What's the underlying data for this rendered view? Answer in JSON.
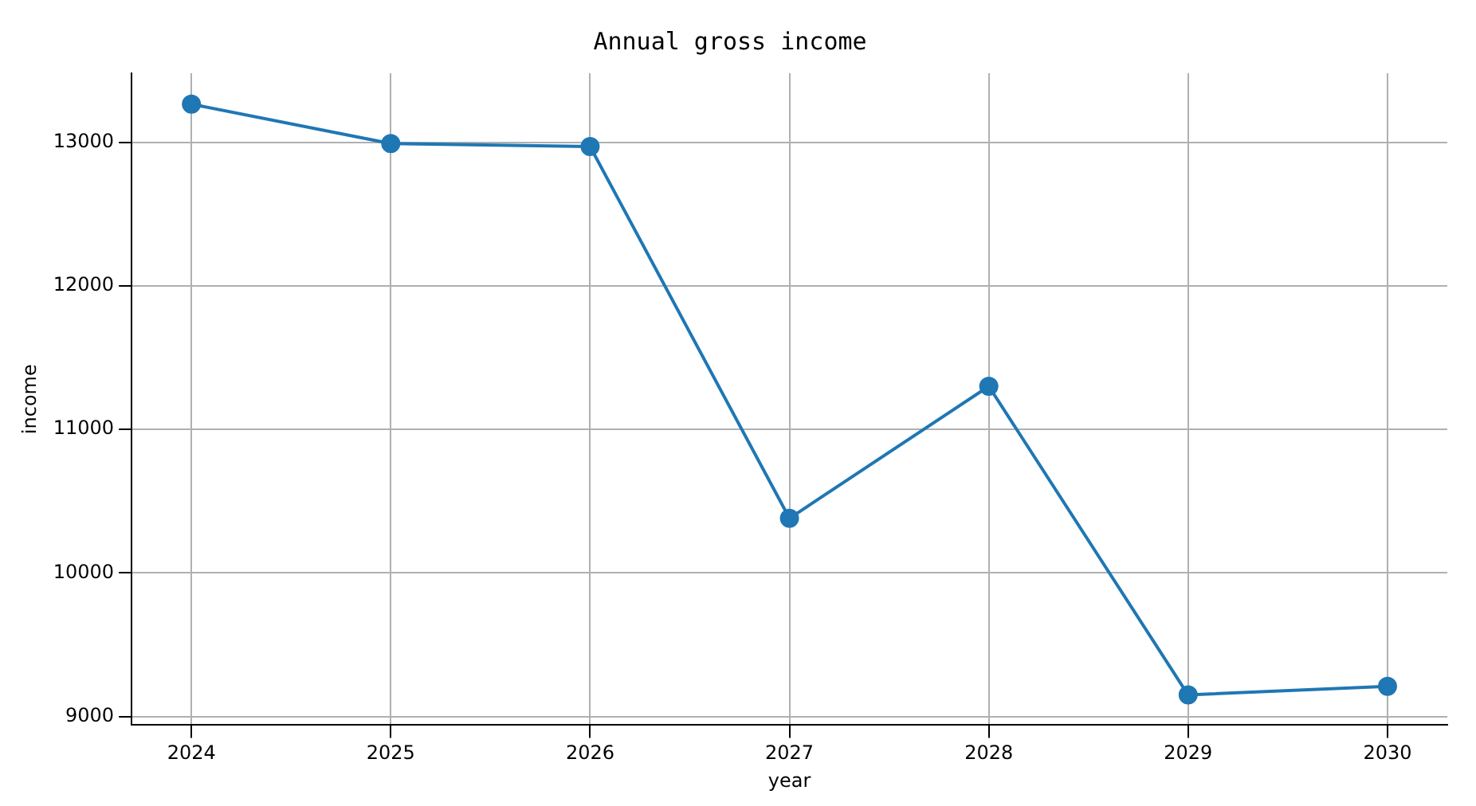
{
  "chart_data": {
    "type": "line",
    "title": "Annual gross income",
    "xlabel": "year",
    "ylabel": "income",
    "x": [
      2024,
      2025,
      2026,
      2027,
      2028,
      2029,
      2030
    ],
    "series": [
      {
        "color": "#1f77b4",
        "values": [
          13265,
          12990,
          12970,
          10380,
          11300,
          9150,
          9210
        ]
      }
    ],
    "xlim": [
      2023.7,
      2030.3
    ],
    "xticks": [
      2024,
      2025,
      2026,
      2027,
      2028,
      2029,
      2030
    ],
    "ylim": [
      8940,
      13480
    ],
    "yticks": [
      9000,
      10000,
      11000,
      12000,
      13000
    ],
    "grid": true,
    "marker": "circle",
    "line_style": "solid",
    "legend": false
  }
}
